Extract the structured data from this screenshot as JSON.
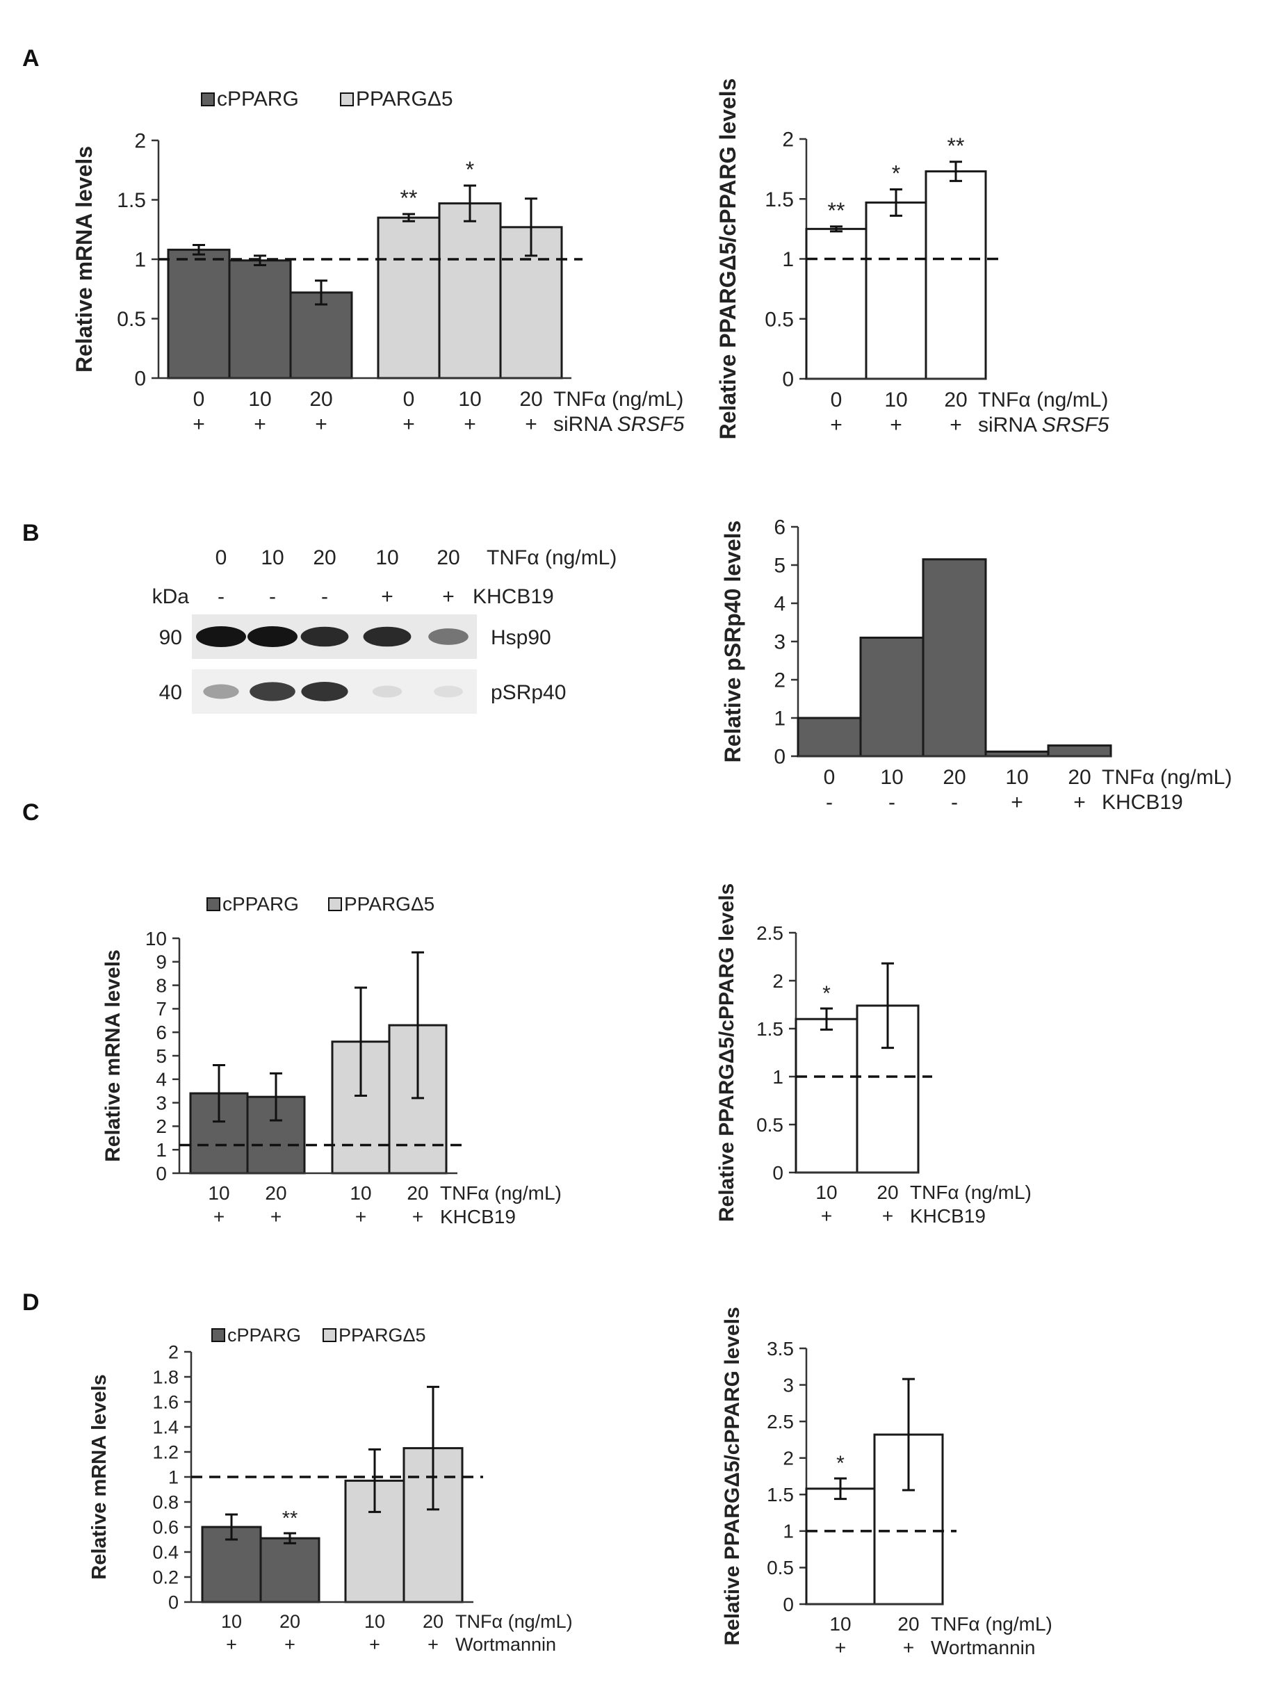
{
  "panels": [
    {
      "id": "A",
      "label": "A"
    },
    {
      "id": "B",
      "label": "B"
    },
    {
      "id": "C",
      "label": "C"
    },
    {
      "id": "D",
      "label": "D"
    }
  ],
  "colors": {
    "cpparg": "#5f5f5f",
    "ppargd5": "#d6d6d6",
    "ratio": "#ffffff",
    "pSRp40": "#5f5f5f"
  },
  "western_blot": {
    "doses": [
      "0",
      "10",
      "20",
      "10",
      "20"
    ],
    "inhibitor_signs": [
      "-",
      "-",
      "-",
      "+",
      "+"
    ],
    "dose_label": "TNFα (ng/mL)",
    "inhibitor_label": "KHCB19",
    "kda_label": "kDa",
    "bands": [
      {
        "kda": "90",
        "name": "Hsp90",
        "intensity": [
          1.0,
          1.0,
          0.9,
          0.9,
          0.55
        ]
      },
      {
        "kda": "40",
        "name": "pSRp40",
        "intensity": [
          0.35,
          0.8,
          0.85,
          0.08,
          0.06
        ]
      }
    ]
  },
  "chart_data": [
    {
      "id": "A-left",
      "type": "bar",
      "ylabel": "Relative mRNA levels",
      "ylim": [
        0,
        2
      ],
      "yticks": [
        "0",
        "0.5",
        "1",
        "1.5",
        "2"
      ],
      "legend": [
        "cPPARG",
        "PPARGΔ5"
      ],
      "dose_label": "TNFα (ng/mL)",
      "cond_label_main": "siRNA ",
      "cond_label_italic": "SRSF5",
      "reference_line": 1,
      "groups": [
        {
          "name": "cPPARG",
          "doses": [
            "0",
            "10",
            "20"
          ],
          "signs": [
            "+",
            "+",
            "+"
          ],
          "values": [
            1.08,
            0.99,
            0.72
          ],
          "errors": [
            0.04,
            0.04,
            0.1
          ],
          "stars": [
            "",
            "",
            ""
          ]
        },
        {
          "name": "PPARGΔ5",
          "doses": [
            "0",
            "10",
            "20"
          ],
          "signs": [
            "+",
            "+",
            "+"
          ],
          "values": [
            1.35,
            1.47,
            1.27
          ],
          "errors": [
            0.03,
            0.15,
            0.24
          ],
          "stars": [
            "**",
            "*",
            ""
          ]
        }
      ]
    },
    {
      "id": "A-right",
      "type": "bar",
      "ylabel": "Relative PPARGΔ5/cPPARG levels",
      "ylim": [
        0,
        2
      ],
      "yticks": [
        "0",
        "0.5",
        "1",
        "1.5",
        "2"
      ],
      "dose_label": "TNFα (ng/mL)",
      "cond_label_main": "siRNA ",
      "cond_label_italic": "SRSF5",
      "reference_line": 1,
      "groups": [
        {
          "name": "",
          "doses": [
            "0",
            "10",
            "20"
          ],
          "signs": [
            "+",
            "+",
            "+"
          ],
          "values": [
            1.25,
            1.47,
            1.73
          ],
          "errors": [
            0.02,
            0.11,
            0.08
          ],
          "stars": [
            "**",
            "*",
            "**"
          ]
        }
      ]
    },
    {
      "id": "B-right",
      "type": "bar",
      "ylabel": "Relative pSRp40 levels",
      "ylim": [
        0,
        6
      ],
      "yticks": [
        "0",
        "1",
        "2",
        "3",
        "4",
        "5",
        "6"
      ],
      "dose_label": "TNFα (ng/mL)",
      "cond_label_main": "KHCB19",
      "cond_label_italic": "",
      "groups": [
        {
          "name": "",
          "doses": [
            "0",
            "10",
            "20",
            "10",
            "20"
          ],
          "signs": [
            "-",
            "-",
            "-",
            "+",
            "+"
          ],
          "values": [
            1.0,
            3.1,
            5.15,
            0.12,
            0.28
          ],
          "errors": [
            0,
            0,
            0,
            0,
            0
          ],
          "stars": [
            "",
            "",
            "",
            "",
            ""
          ]
        }
      ]
    },
    {
      "id": "C-left",
      "type": "bar",
      "ylabel": "Relative mRNA levels",
      "ylim": [
        0,
        10
      ],
      "yticks": [
        "0",
        "1",
        "2",
        "3",
        "4",
        "5",
        "6",
        "7",
        "8",
        "9",
        "10"
      ],
      "legend": [
        "cPPARG",
        "PPARGΔ5"
      ],
      "dose_label": "TNFα (ng/mL)",
      "cond_label_main": "KHCB19",
      "cond_label_italic": "",
      "reference_line": 1.2,
      "groups": [
        {
          "name": "cPPARG",
          "doses": [
            "10",
            "20"
          ],
          "signs": [
            "+",
            "+"
          ],
          "values": [
            3.4,
            3.25
          ],
          "errors": [
            1.2,
            1.0
          ],
          "stars": [
            "",
            ""
          ]
        },
        {
          "name": "PPARGΔ5",
          "doses": [
            "10",
            "20"
          ],
          "signs": [
            "+",
            "+"
          ],
          "values": [
            5.6,
            6.3
          ],
          "errors": [
            2.3,
            3.1
          ],
          "stars": [
            "",
            ""
          ]
        }
      ]
    },
    {
      "id": "C-right",
      "type": "bar",
      "ylabel": "Relative PPARGΔ5/cPPARG levels",
      "ylim": [
        0,
        2.5
      ],
      "yticks": [
        "0",
        "0.5",
        "1",
        "1.5",
        "2",
        "2.5"
      ],
      "dose_label": "TNFα (ng/mL)",
      "cond_label_main": "KHCB19",
      "cond_label_italic": "",
      "reference_line": 1,
      "groups": [
        {
          "name": "",
          "doses": [
            "10",
            "20"
          ],
          "signs": [
            "+",
            "+"
          ],
          "values": [
            1.6,
            1.74
          ],
          "errors": [
            0.11,
            0.44
          ],
          "stars": [
            "*",
            ""
          ]
        }
      ]
    },
    {
      "id": "D-left",
      "type": "bar",
      "ylabel": "Relative mRNA levels",
      "ylim": [
        0,
        2
      ],
      "yticks": [
        "0",
        "0.2",
        "0.4",
        "0.6",
        "0.8",
        "1",
        "1.2",
        "1.4",
        "1.6",
        "1.8",
        "2"
      ],
      "legend": [
        "cPPARG",
        "PPARGΔ5"
      ],
      "dose_label": "TNFα (ng/mL)",
      "cond_label_main": "Wortmannin",
      "cond_label_italic": "",
      "reference_line": 1,
      "groups": [
        {
          "name": "cPPARG",
          "doses": [
            "10",
            "20"
          ],
          "signs": [
            "+",
            "+"
          ],
          "values": [
            0.6,
            0.51
          ],
          "errors": [
            0.1,
            0.04
          ],
          "stars": [
            "",
            "**"
          ]
        },
        {
          "name": "PPARGΔ5",
          "doses": [
            "10",
            "20"
          ],
          "signs": [
            "+",
            "+"
          ],
          "values": [
            0.97,
            1.23
          ],
          "errors": [
            0.25,
            0.49
          ],
          "stars": [
            "",
            ""
          ]
        }
      ]
    },
    {
      "id": "D-right",
      "type": "bar",
      "ylabel": "Relative PPARGΔ5/cPPARG levels",
      "ylim": [
        0,
        3.5
      ],
      "yticks": [
        "0",
        "0.5",
        "1",
        "1.5",
        "2",
        "2.5",
        "3",
        "3.5"
      ],
      "dose_label": "TNFα (ng/mL)",
      "cond_label_main": "Wortmannin",
      "cond_label_italic": "",
      "reference_line": 1,
      "groups": [
        {
          "name": "",
          "doses": [
            "10",
            "20"
          ],
          "signs": [
            "+",
            "+"
          ],
          "values": [
            1.58,
            2.32
          ],
          "errors": [
            0.14,
            0.76
          ],
          "stars": [
            "*",
            ""
          ]
        }
      ]
    }
  ]
}
